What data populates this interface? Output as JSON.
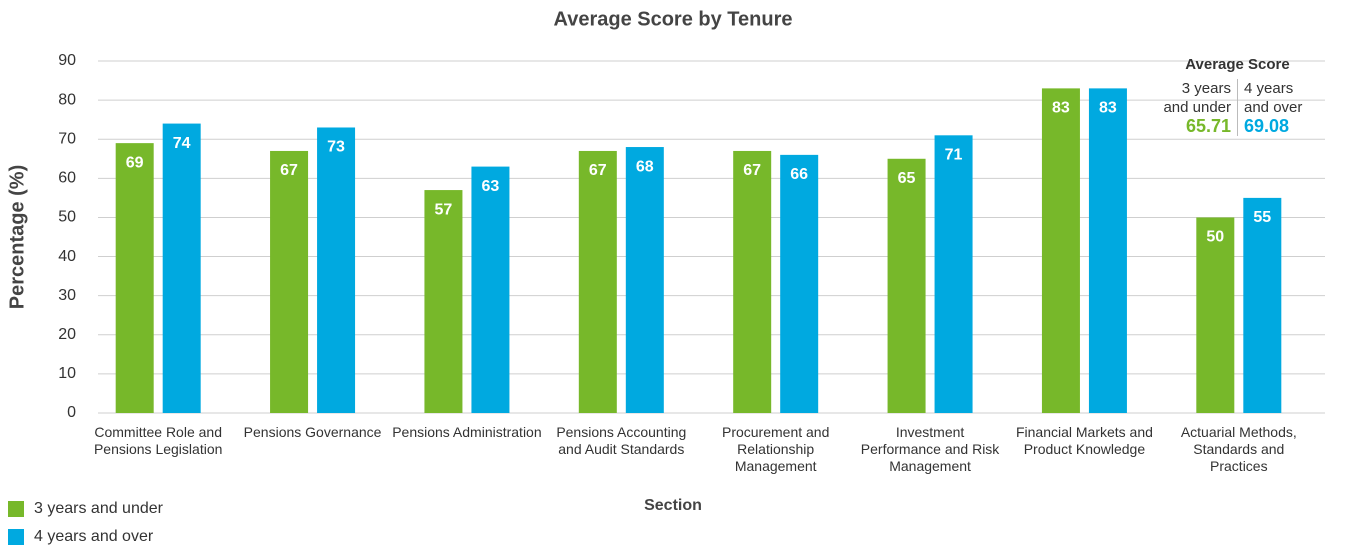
{
  "chart_data": {
    "type": "bar",
    "title": "Average Score by Tenure",
    "x_label": "Section",
    "y_label": "Percentage (%)",
    "categories": [
      "Committee Role and Pensions Legislation",
      "Pensions Governance",
      "Pensions Administration",
      "Pensions Accounting and Audit Standards",
      "Procurement and Relationship Management",
      "Investment Performance and Risk Management",
      "Financial Markets and Product Knowledge",
      "Actuarial Methods, Standards and Practices"
    ],
    "series": [
      {
        "name": "3 years and under",
        "color": "#77b82a",
        "values": [
          69,
          67,
          57,
          67,
          67,
          65,
          83,
          50
        ]
      },
      {
        "name": "4 years and over",
        "color": "#00a9e0",
        "values": [
          74,
          73,
          63,
          68,
          66,
          71,
          83,
          55
        ]
      }
    ],
    "ylim": [
      0,
      90
    ],
    "yticks": [
      0,
      10,
      20,
      30,
      40,
      50,
      60,
      70,
      80,
      90
    ],
    "grid": true,
    "annotation": {
      "title": "Average Score",
      "items": [
        {
          "label": "3 years and under",
          "value": 65.71
        },
        {
          "label": "4 years and over",
          "value": 69.08
        }
      ]
    }
  }
}
